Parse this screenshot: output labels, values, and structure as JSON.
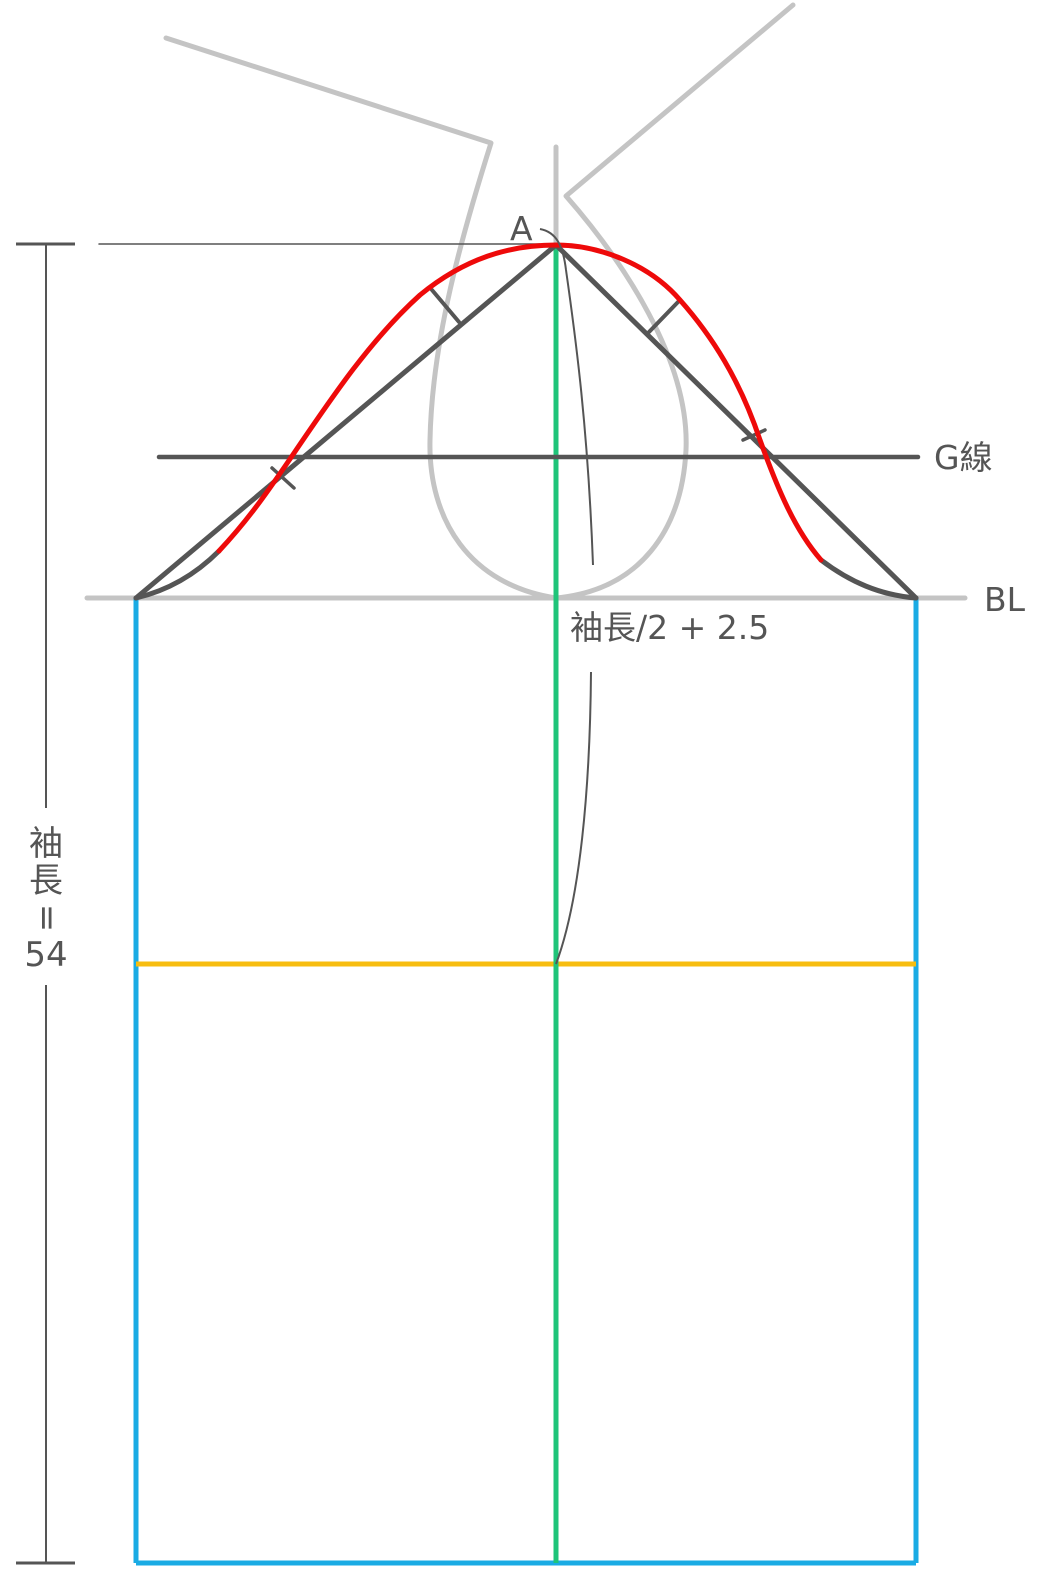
{
  "labels": {
    "point_a": "A",
    "g_line": "G線",
    "bl": "BL",
    "cap_height": "袖長/2 + 2.5",
    "sleeve_length": [
      "袖",
      "長",
      "=",
      "54"
    ]
  },
  "colors": {
    "bodice_guide": "#c4c4c4",
    "construction": "#555555",
    "sleeve_cap_curve": "#ee0a0a",
    "center_line": "#1fc479",
    "sleeve_frame": "#1aabe4",
    "elbow_line": "#f7bd10"
  }
}
